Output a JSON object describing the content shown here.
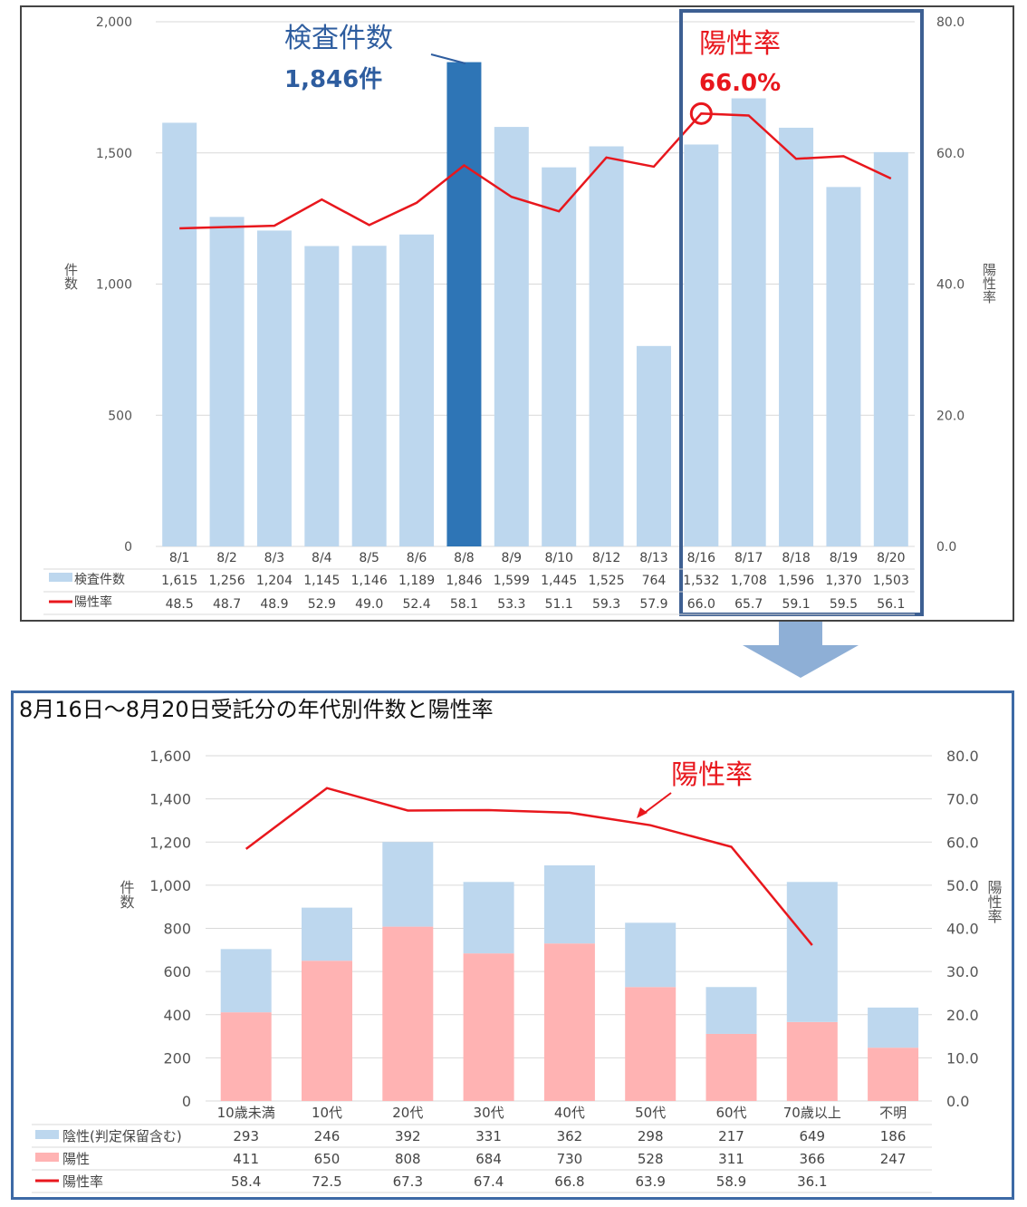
{
  "chart_data": [
    {
      "type": "bar",
      "categories": [
        "8/1",
        "8/2",
        "8/3",
        "8/4",
        "8/5",
        "8/6",
        "8/8",
        "8/9",
        "8/10",
        "8/12",
        "8/13",
        "8/16",
        "8/17",
        "8/18",
        "8/19",
        "8/20"
      ],
      "series": [
        {
          "name": "検査件数",
          "type": "bar",
          "axis": "left",
          "color": "#bdd7ee",
          "values": [
            1615,
            1256,
            1204,
            1145,
            1146,
            1189,
            1846,
            1599,
            1445,
            1525,
            764,
            1532,
            1708,
            1596,
            1370,
            1503
          ]
        },
        {
          "name": "陽性率",
          "type": "line",
          "axis": "right",
          "color": "#e8171d",
          "values": [
            48.5,
            48.7,
            48.9,
            52.9,
            49.0,
            52.4,
            58.1,
            53.3,
            51.1,
            59.3,
            57.9,
            66.0,
            65.7,
            59.1,
            59.5,
            56.1
          ]
        }
      ],
      "value_labels": {
        "tests": [
          "1,615",
          "1,256",
          "1,204",
          "1,145",
          "1,146",
          "1,189",
          "1,846",
          "1,599",
          "1,445",
          "1,525",
          "764",
          "1,532",
          "1,708",
          "1,596",
          "1,370",
          "1,503"
        ],
        "rate": [
          "48.5",
          "48.7",
          "48.9",
          "52.9",
          "49.0",
          "52.4",
          "58.1",
          "53.3",
          "51.1",
          "59.3",
          "57.9",
          "66.0",
          "65.7",
          "59.1",
          "59.5",
          "56.1"
        ]
      },
      "highlight_bar_index": 6,
      "highlight_color": "#2e75b6",
      "ylim_left": [
        0,
        2000
      ],
      "ylim_right": [
        0,
        80
      ],
      "left_ticks": [
        "2,000",
        "1,500",
        "1,000",
        "500",
        "0"
      ],
      "right_ticks": [
        "80.0",
        "60.0",
        "40.0",
        "20.0",
        "0.0"
      ],
      "ylabel_left": "件数",
      "ylabel_right": "陽性率",
      "annotations": {
        "tests_title": "検査件数",
        "tests_value": "1,846件",
        "rate_title": "陽性率",
        "rate_value": "66.0%"
      }
    },
    {
      "type": "bar",
      "stacked": true,
      "title": "8月16日～8月20日受託分の年代別件数と陽性率",
      "categories": [
        "10歳未満",
        "10代",
        "20代",
        "30代",
        "40代",
        "50代",
        "60代",
        "70歳以上",
        "不明"
      ],
      "series": [
        {
          "name": "陽性",
          "type": "bar",
          "axis": "left",
          "color": "#ffb3b3",
          "values": [
            411,
            650,
            808,
            684,
            730,
            528,
            311,
            366,
            247
          ]
        },
        {
          "name": "陰性(判定保留含む)",
          "type": "bar",
          "axis": "left",
          "color": "#bdd7ee",
          "values": [
            293,
            246,
            392,
            331,
            362,
            298,
            217,
            649,
            186
          ]
        },
        {
          "name": "陽性率",
          "type": "line",
          "axis": "right",
          "color": "#e8171d",
          "values": [
            58.4,
            72.5,
            67.3,
            67.4,
            66.8,
            63.9,
            58.9,
            36.1,
            null
          ]
        }
      ],
      "value_labels": {
        "neg": [
          "293",
          "246",
          "392",
          "331",
          "362",
          "298",
          "217",
          "649",
          "186"
        ],
        "pos": [
          "411",
          "650",
          "808",
          "684",
          "730",
          "528",
          "311",
          "366",
          "247"
        ],
        "rate": [
          "58.4",
          "72.5",
          "67.3",
          "67.4",
          "66.8",
          "63.9",
          "58.9",
          "36.1",
          ""
        ]
      },
      "ylim_left": [
        0,
        1600
      ],
      "ylim_right": [
        0,
        80
      ],
      "left_ticks": [
        "1,600",
        "1,400",
        "1,200",
        "1,000",
        "800",
        "600",
        "400",
        "200",
        "0"
      ],
      "right_ticks": [
        "80.0",
        "70.0",
        "60.0",
        "50.0",
        "40.0",
        "30.0",
        "20.0",
        "10.0",
        "0.0"
      ],
      "ylabel_left": "件数",
      "ylabel_right": "陽性率",
      "annotation": "陽性率"
    }
  ]
}
